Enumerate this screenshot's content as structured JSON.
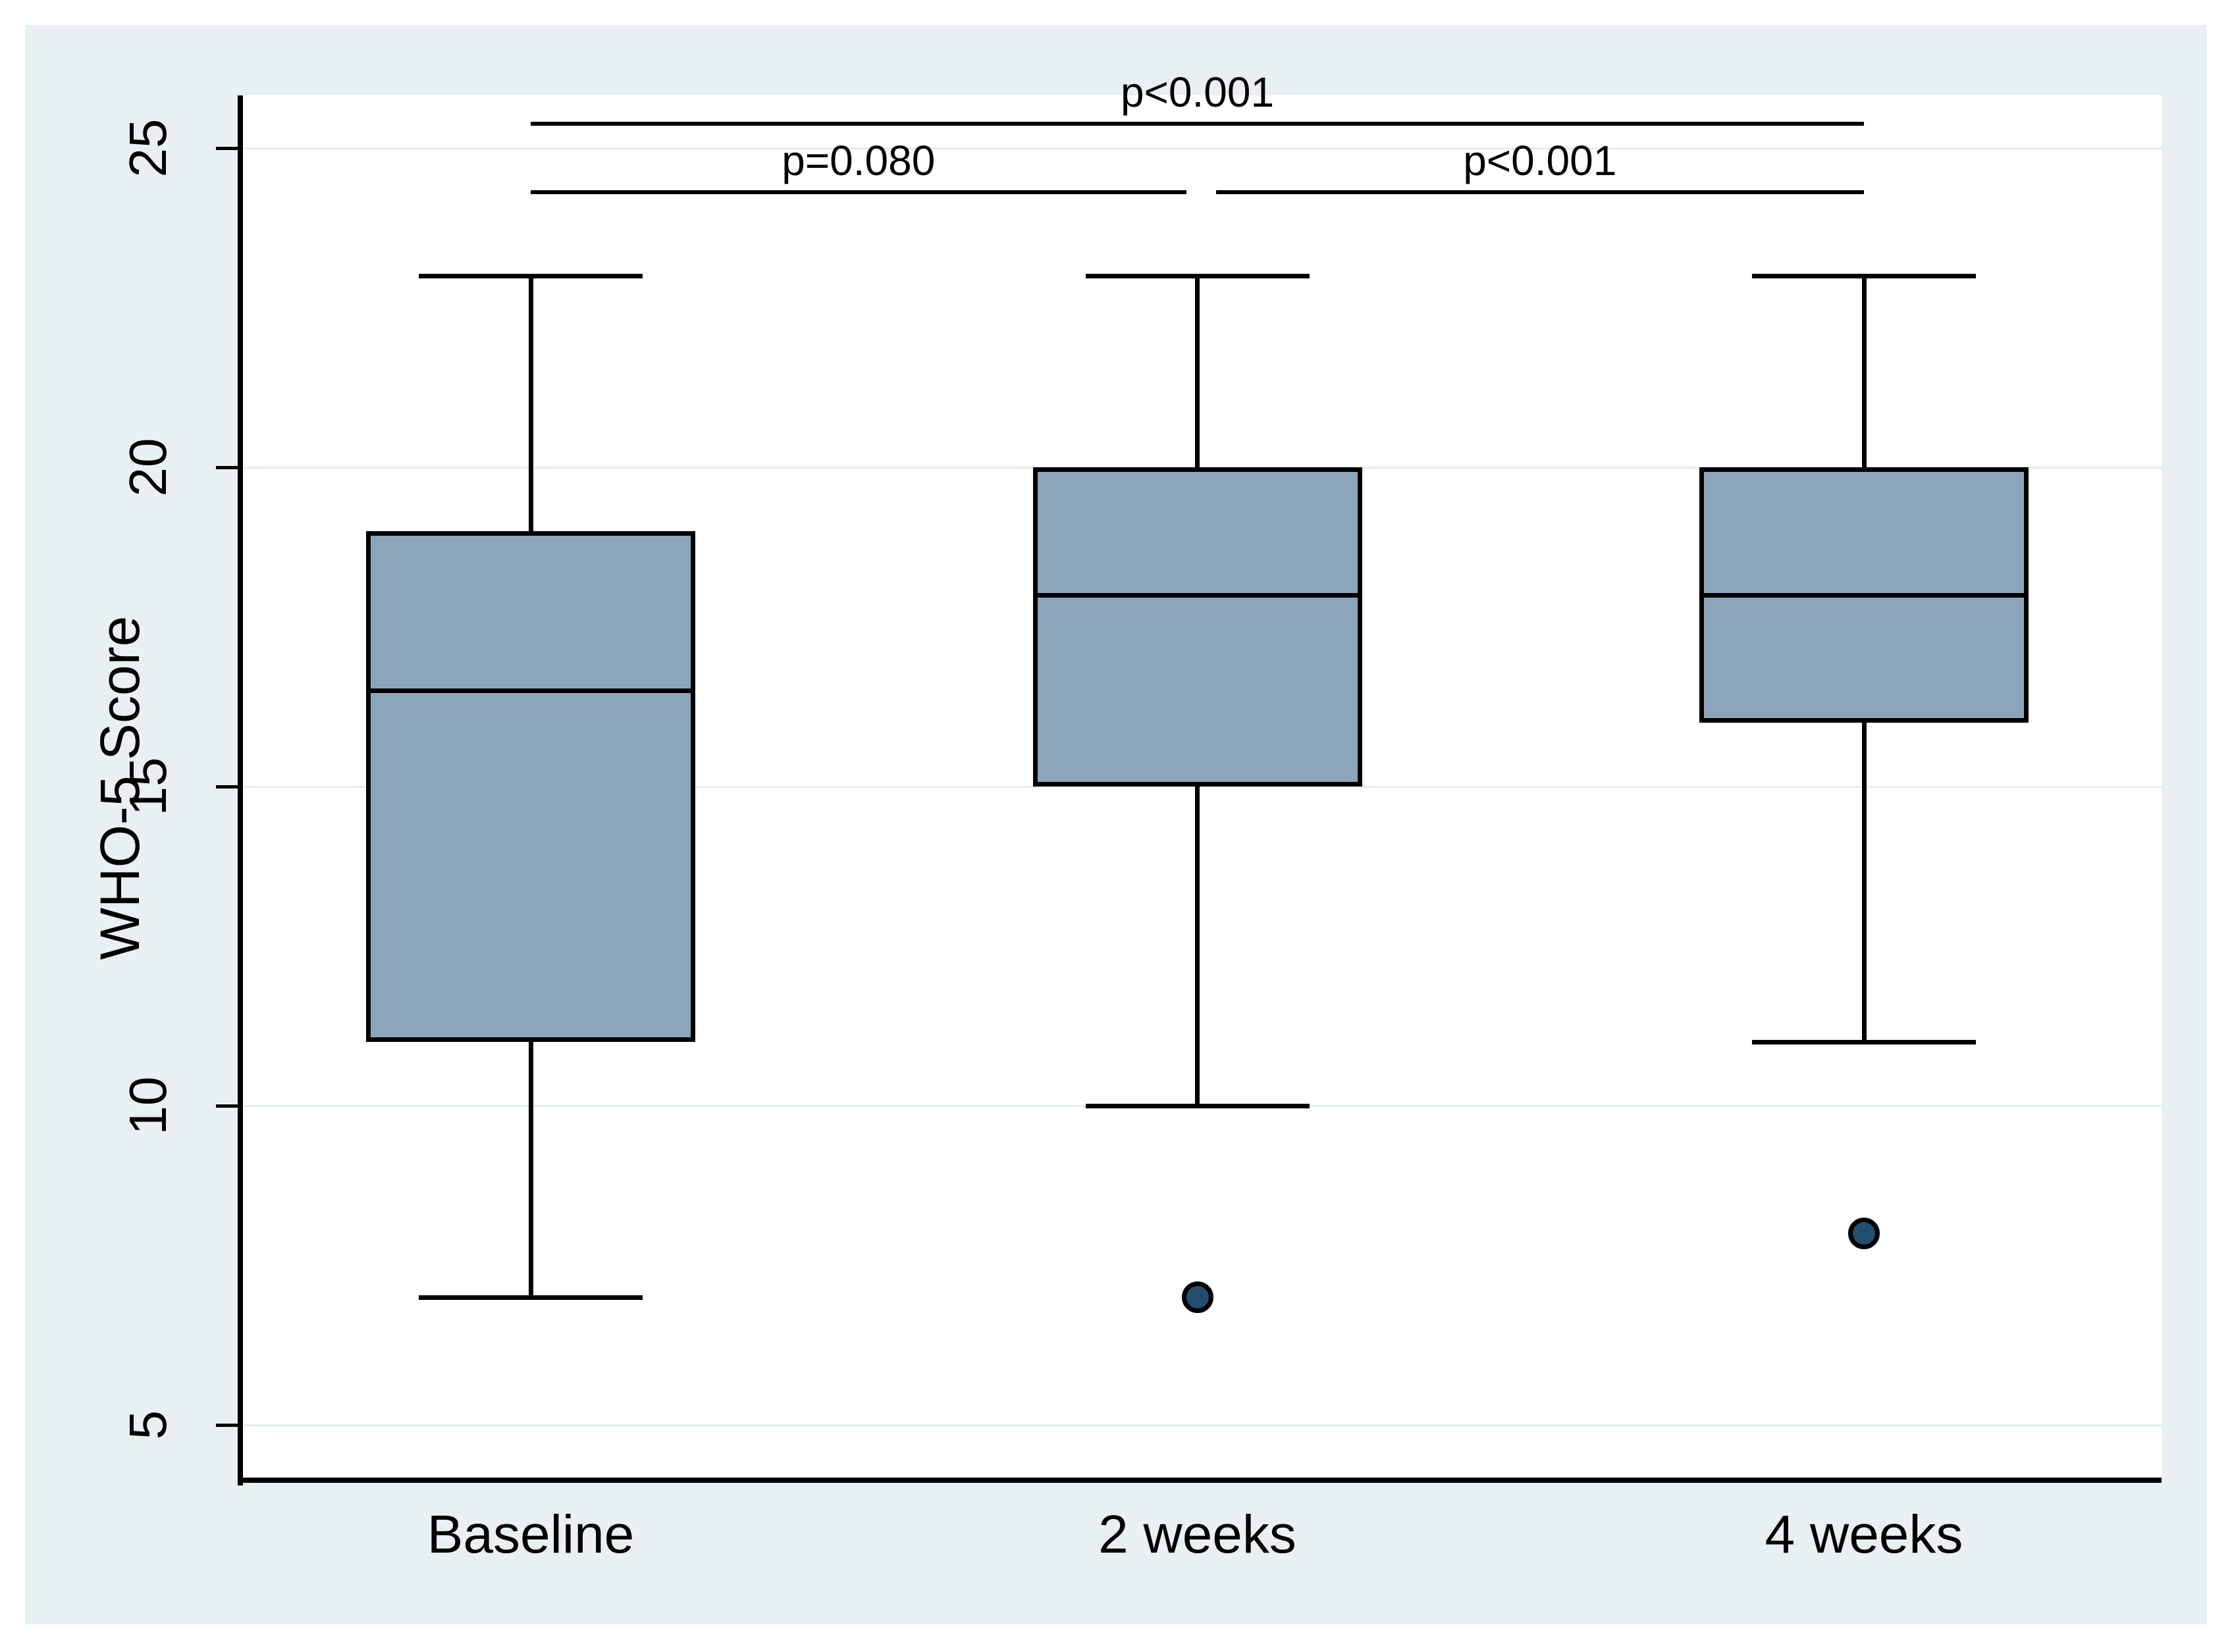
{
  "chart_data": {
    "type": "box",
    "title": "",
    "xlabel": "",
    "ylabel": "WHO-5 Score",
    "categories": [
      "Baseline",
      "2 weeks",
      "4 weeks"
    ],
    "yticks": [
      5,
      10,
      15,
      20,
      25
    ],
    "ylim": [
      4.1,
      25.8
    ],
    "grid": true,
    "legend": "none",
    "series": [
      {
        "category": "Baseline",
        "min": 7,
        "q1": 11,
        "median": 16.5,
        "q3": 19,
        "max": 23,
        "outliers": []
      },
      {
        "category": "2 weeks",
        "min": 10,
        "q1": 15,
        "median": 18,
        "q3": 20,
        "max": 23,
        "outliers": [
          7
        ]
      },
      {
        "category": "4 weeks",
        "min": 11,
        "q1": 16,
        "median": 18,
        "q3": 20,
        "max": 23,
        "outliers": [
          8
        ]
      }
    ],
    "annotations": [
      {
        "label": "p<0.001",
        "from": "Baseline",
        "to": "4 weeks",
        "row": 0
      },
      {
        "label": "p=0.080",
        "from": "Baseline",
        "to": "2 weeks",
        "row": 1
      },
      {
        "label": "p<0.001",
        "from": "2 weeks",
        "to": "4 weeks",
        "row": 1
      }
    ]
  },
  "colors": {
    "card_background": "#e9f0f2",
    "plot_background": "#ffffff",
    "gridline": "#e3eef4",
    "box_fill": "#8da5bb",
    "line": "#000000",
    "outlier_fill": "#224e71"
  }
}
